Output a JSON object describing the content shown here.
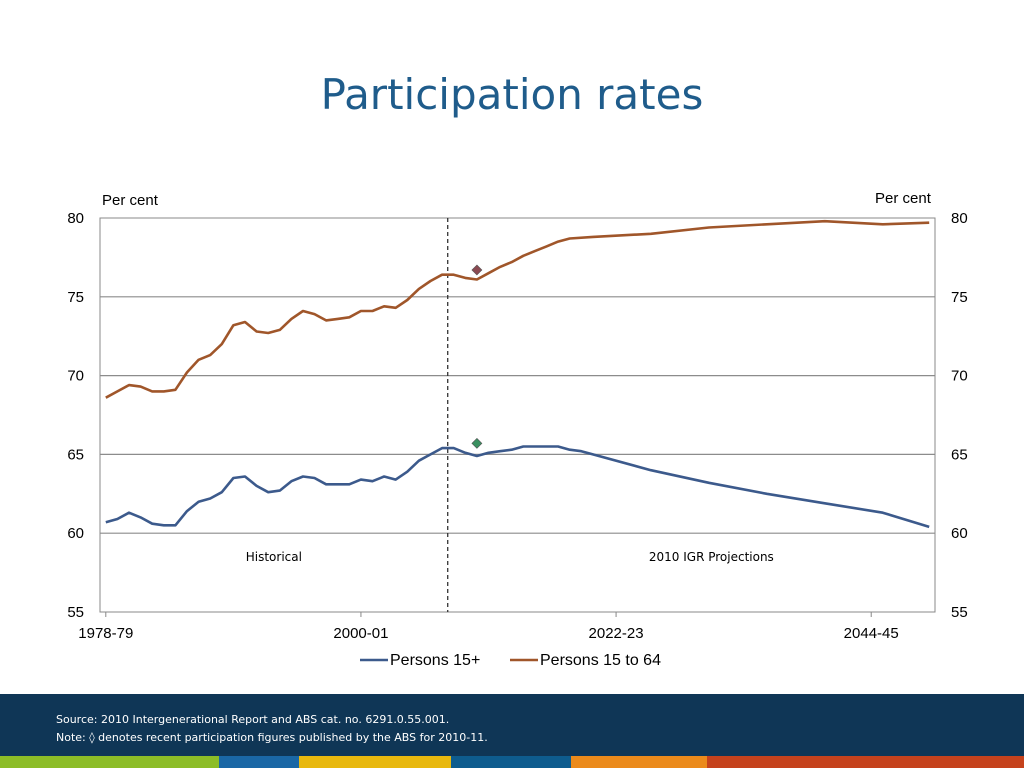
{
  "title": "Participation rates",
  "footer": {
    "source": "Source:  2010 Intergenerational Report and ABS cat. no. 6291.0.55.001.",
    "note": "Note: ◊  denotes  recent participation figures published by the ABS for 2010-11."
  },
  "stripe_colors": [
    "#8cbd27",
    "#1a67a5",
    "#e8b80e",
    "#0e5c8e",
    "#eb8a1b",
    "#c5421c"
  ],
  "chart_data": {
    "type": "line",
    "ylabel_left": "Per cent",
    "ylabel_right": "Per cent",
    "ylim": [
      55,
      80
    ],
    "yticks": [
      55,
      60,
      65,
      70,
      75,
      80
    ],
    "x_start": "1978-79",
    "x_end": "2049-50",
    "xtick_labels": [
      "1978-79",
      "2000-01",
      "2022-23",
      "2044-45"
    ],
    "grid": true,
    "legend_position": "bottom",
    "divider_year": "2008-09",
    "region_labels": {
      "left": "Historical",
      "right": "2010 IGR Projections"
    },
    "series": [
      {
        "name": "Persons 15+",
        "color": "#3c5a8c",
        "values": [
          [
            "1978-79",
            60.7
          ],
          [
            "1979-80",
            60.9
          ],
          [
            "1980-81",
            61.3
          ],
          [
            "1981-82",
            61.0
          ],
          [
            "1982-83",
            60.6
          ],
          [
            "1983-84",
            60.5
          ],
          [
            "1984-85",
            60.5
          ],
          [
            "1985-86",
            61.4
          ],
          [
            "1986-87",
            62.0
          ],
          [
            "1987-88",
            62.2
          ],
          [
            "1988-89",
            62.6
          ],
          [
            "1989-90",
            63.5
          ],
          [
            "1990-91",
            63.6
          ],
          [
            "1991-92",
            63.0
          ],
          [
            "1992-93",
            62.6
          ],
          [
            "1993-94",
            62.7
          ],
          [
            "1994-95",
            63.3
          ],
          [
            "1995-96",
            63.6
          ],
          [
            "1996-97",
            63.5
          ],
          [
            "1997-98",
            63.1
          ],
          [
            "1998-99",
            63.1
          ],
          [
            "1999-00",
            63.1
          ],
          [
            "2000-01",
            63.4
          ],
          [
            "2001-02",
            63.3
          ],
          [
            "2002-03",
            63.6
          ],
          [
            "2003-04",
            63.4
          ],
          [
            "2004-05",
            63.9
          ],
          [
            "2005-06",
            64.6
          ],
          [
            "2006-07",
            65.0
          ],
          [
            "2007-08",
            65.4
          ],
          [
            "2008-09",
            65.4
          ],
          [
            "2009-10",
            65.1
          ],
          [
            "2010-11",
            64.9
          ],
          [
            "2011-12",
            65.1
          ],
          [
            "2012-13",
            65.2
          ],
          [
            "2013-14",
            65.3
          ],
          [
            "2014-15",
            65.5
          ],
          [
            "2015-16",
            65.5
          ],
          [
            "2016-17",
            65.5
          ],
          [
            "2017-18",
            65.5
          ],
          [
            "2018-19",
            65.3
          ],
          [
            "2019-20",
            65.2
          ],
          [
            "2020-21",
            65.0
          ],
          [
            "2025-26",
            64.0
          ],
          [
            "2030-31",
            63.2
          ],
          [
            "2035-36",
            62.5
          ],
          [
            "2040-41",
            61.9
          ],
          [
            "2045-46",
            61.3
          ],
          [
            "2049-50",
            60.4
          ]
        ]
      },
      {
        "name": "Persons 15 to 64",
        "color": "#a0562a",
        "values": [
          [
            "1978-79",
            68.6
          ],
          [
            "1979-80",
            69.0
          ],
          [
            "1980-81",
            69.4
          ],
          [
            "1981-82",
            69.3
          ],
          [
            "1982-83",
            69.0
          ],
          [
            "1983-84",
            69.0
          ],
          [
            "1984-85",
            69.1
          ],
          [
            "1985-86",
            70.2
          ],
          [
            "1986-87",
            71.0
          ],
          [
            "1987-88",
            71.3
          ],
          [
            "1988-89",
            72.0
          ],
          [
            "1989-90",
            73.2
          ],
          [
            "1990-91",
            73.4
          ],
          [
            "1991-92",
            72.8
          ],
          [
            "1992-93",
            72.7
          ],
          [
            "1993-94",
            72.9
          ],
          [
            "1994-95",
            73.6
          ],
          [
            "1995-96",
            74.1
          ],
          [
            "1996-97",
            73.9
          ],
          [
            "1997-98",
            73.5
          ],
          [
            "1998-99",
            73.6
          ],
          [
            "1999-00",
            73.7
          ],
          [
            "2000-01",
            74.1
          ],
          [
            "2001-02",
            74.1
          ],
          [
            "2002-03",
            74.4
          ],
          [
            "2003-04",
            74.3
          ],
          [
            "2004-05",
            74.8
          ],
          [
            "2005-06",
            75.5
          ],
          [
            "2006-07",
            76.0
          ],
          [
            "2007-08",
            76.4
          ],
          [
            "2008-09",
            76.4
          ],
          [
            "2009-10",
            76.2
          ],
          [
            "2010-11",
            76.1
          ],
          [
            "2011-12",
            76.5
          ],
          [
            "2012-13",
            76.9
          ],
          [
            "2013-14",
            77.2
          ],
          [
            "2014-15",
            77.6
          ],
          [
            "2015-16",
            77.9
          ],
          [
            "2016-17",
            78.2
          ],
          [
            "2017-18",
            78.5
          ],
          [
            "2018-19",
            78.7
          ],
          [
            "2020-21",
            78.8
          ],
          [
            "2025-26",
            79.0
          ],
          [
            "2030-31",
            79.4
          ],
          [
            "2035-36",
            79.6
          ],
          [
            "2040-41",
            79.8
          ],
          [
            "2045-46",
            79.6
          ],
          [
            "2049-50",
            79.7
          ]
        ]
      }
    ],
    "markers": [
      {
        "series": "Persons 15+",
        "x": "2010-11",
        "y": 65.7,
        "color": "#3a9060",
        "symbol": "diamond"
      },
      {
        "series": "Persons 15 to 64",
        "x": "2010-11",
        "y": 76.7,
        "color": "#8b4a52",
        "symbol": "diamond"
      }
    ]
  }
}
